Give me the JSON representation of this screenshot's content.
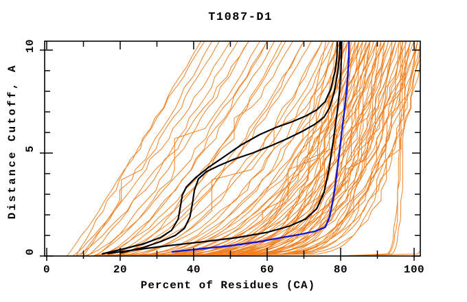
{
  "chart_data": {
    "type": "line",
    "title": "T1087-D1",
    "xlabel": "Percent of Residues (CA)",
    "ylabel": "Distance Cutoff, A",
    "xlim": [
      -0.6,
      101.7
    ],
    "ylim": [
      0,
      10.43
    ],
    "x_ticks": [
      0,
      20,
      40,
      60,
      80,
      100
    ],
    "x_minor_ticks": [
      10,
      30,
      50,
      70,
      90
    ],
    "y_ticks": [
      0,
      5,
      10
    ],
    "y_minor_ticks": [
      1,
      2,
      3,
      4,
      6,
      7,
      8,
      9
    ],
    "grid": false,
    "legend": "none",
    "colors": {
      "ensemble": "#f08020",
      "highlight": "#1515cd",
      "selected": "#000000",
      "frame": "#000000"
    },
    "series": [
      {
        "name": "blue-highlight-model",
        "color": "#1515cd",
        "width": 2.4,
        "points": [
          [
            34,
            0.2
          ],
          [
            42,
            0.35
          ],
          [
            50,
            0.5
          ],
          [
            58,
            0.7
          ],
          [
            64,
            0.9
          ],
          [
            69,
            1.05
          ],
          [
            73,
            1.2
          ],
          [
            75.8,
            1.4
          ],
          [
            77,
            1.9
          ],
          [
            77.8,
            2.6
          ],
          [
            78.6,
            3.5
          ],
          [
            79.5,
            4.8
          ],
          [
            80.3,
            6.0
          ],
          [
            81,
            7.0
          ],
          [
            81.6,
            8.0
          ],
          [
            82,
            8.9
          ],
          [
            82.2,
            9.6
          ],
          [
            82.3,
            10.43
          ]
        ]
      },
      {
        "name": "black-model-1",
        "color": "#000000",
        "width": 2.2,
        "points": [
          [
            20,
            0.15
          ],
          [
            26,
            0.4
          ],
          [
            31,
            0.7
          ],
          [
            35,
            1.0
          ],
          [
            37.5,
            1.35
          ],
          [
            39,
            1.9
          ],
          [
            39.7,
            2.6
          ],
          [
            40.2,
            3.2
          ],
          [
            41.3,
            3.75
          ],
          [
            43.5,
            4.1
          ],
          [
            47,
            4.4
          ],
          [
            51,
            4.7
          ],
          [
            56,
            5.0
          ],
          [
            61,
            5.35
          ],
          [
            65.5,
            5.7
          ],
          [
            69.5,
            6.05
          ],
          [
            73,
            6.4
          ],
          [
            75.5,
            6.75
          ],
          [
            77,
            7.2
          ],
          [
            78.3,
            8.0
          ],
          [
            79.2,
            8.9
          ],
          [
            79.7,
            9.7
          ],
          [
            79.8,
            10.43
          ]
        ]
      },
      {
        "name": "black-model-2",
        "color": "#000000",
        "width": 2.2,
        "points": [
          [
            15,
            0.1
          ],
          [
            21,
            0.35
          ],
          [
            26.5,
            0.6
          ],
          [
            31,
            0.9
          ],
          [
            34,
            1.25
          ],
          [
            35.8,
            1.8
          ],
          [
            36.4,
            2.4
          ],
          [
            36.9,
            2.95
          ],
          [
            38,
            3.35
          ],
          [
            40.5,
            3.8
          ],
          [
            44,
            4.3
          ],
          [
            48.5,
            4.85
          ],
          [
            53,
            5.4
          ],
          [
            58,
            5.9
          ],
          [
            62.5,
            6.25
          ],
          [
            66.5,
            6.5
          ],
          [
            70.5,
            6.8
          ],
          [
            73.5,
            7.1
          ],
          [
            75.8,
            7.5
          ],
          [
            77.3,
            8.1
          ],
          [
            78.5,
            9.0
          ],
          [
            79,
            9.7
          ],
          [
            79.1,
            10.43
          ]
        ]
      },
      {
        "name": "black-model-3",
        "color": "#000000",
        "width": 2.2,
        "points": [
          [
            16.5,
            0.12
          ],
          [
            24,
            0.3
          ],
          [
            33,
            0.5
          ],
          [
            43,
            0.7
          ],
          [
            52,
            0.9
          ],
          [
            60,
            1.15
          ],
          [
            66,
            1.45
          ],
          [
            70.5,
            1.8
          ],
          [
            73.5,
            2.3
          ],
          [
            75.5,
            3.1
          ],
          [
            76.8,
            4.2
          ],
          [
            78,
            5.6
          ],
          [
            79,
            6.9
          ],
          [
            79.7,
            8.0
          ],
          [
            80.1,
            9.0
          ],
          [
            80.3,
            10.43
          ]
        ]
      }
    ],
    "ensemble": {
      "name": "server-model-curves",
      "color": "#f08020",
      "width": 1,
      "sample_y": [
        0,
        0.1,
        0.25,
        0.45,
        0.7,
        1,
        1.35,
        1.75,
        2.2,
        2.7,
        3.2,
        3.7,
        4.2,
        4.7,
        5.2,
        5.7,
        6.2,
        6.7,
        7.2,
        7.7,
        8.2,
        8.7,
        9.2,
        9.7,
        10.1,
        10.43
      ],
      "curves": [
        [
          5.5,
          43,
          0.95,
          1
        ],
        [
          7,
          50,
          0.85,
          2
        ],
        [
          8,
          55,
          0.8,
          3
        ],
        [
          9,
          47,
          0.9,
          4
        ],
        [
          10,
          60,
          0.7,
          5
        ],
        [
          11,
          52,
          0.85,
          6
        ],
        [
          12,
          65,
          0.6,
          7
        ],
        [
          12.5,
          58,
          0.75,
          8
        ],
        [
          13,
          70,
          0.55,
          9
        ],
        [
          14,
          62,
          0.7,
          10
        ],
        [
          15,
          75,
          0.5,
          11
        ],
        [
          15.5,
          67,
          0.65,
          12
        ],
        [
          16,
          80,
          0.45,
          13
        ],
        [
          17,
          72,
          0.6,
          14
        ],
        [
          18,
          85,
          0.4,
          15
        ],
        [
          18.5,
          77,
          0.5,
          16
        ],
        [
          19,
          88,
          0.38,
          17
        ],
        [
          20,
          70,
          0.6,
          18
        ],
        [
          20.5,
          82,
          0.45,
          19
        ],
        [
          21,
          92,
          0.35,
          20
        ],
        [
          22,
          75,
          0.55,
          21
        ],
        [
          22.5,
          86,
          0.42,
          22
        ],
        [
          23,
          95,
          0.32,
          23
        ],
        [
          24,
          78,
          0.5,
          24
        ],
        [
          8,
          42,
          1.0,
          85
        ],
        [
          24.5,
          88,
          0.4,
          25
        ],
        [
          25,
          98,
          0.3,
          26
        ],
        [
          25.5,
          80,
          0.48,
          27
        ],
        [
          26,
          90,
          0.38,
          28
        ],
        [
          26.5,
          100,
          0.28,
          29
        ],
        [
          27,
          82,
          0.45,
          30
        ],
        [
          27.5,
          92,
          0.36,
          31
        ],
        [
          28,
          101,
          0.27,
          32
        ],
        [
          28.5,
          84,
          0.42,
          33
        ],
        [
          29,
          94,
          0.33,
          34
        ],
        [
          29.5,
          86,
          0.4,
          35
        ],
        [
          30,
          96,
          0.3,
          36
        ],
        [
          30.5,
          88,
          0.37,
          37
        ],
        [
          31,
          99,
          0.28,
          38
        ],
        [
          31.5,
          90,
          0.35,
          39
        ],
        [
          32,
          101,
          0.26,
          40
        ],
        [
          32.5,
          85,
          0.4,
          41
        ],
        [
          33,
          93,
          0.32,
          42
        ],
        [
          33.5,
          102,
          0.24,
          43
        ],
        [
          34,
          87,
          0.38,
          44
        ],
        [
          34.5,
          95,
          0.3,
          45
        ],
        [
          35,
          103,
          0.22,
          46
        ],
        [
          35.5,
          89,
          0.35,
          47
        ],
        [
          36,
          97,
          0.28,
          48
        ],
        [
          36.5,
          91,
          0.33,
          49
        ],
        [
          13,
          55,
          0.8,
          81
        ],
        [
          16,
          60,
          0.72,
          82
        ],
        [
          19,
          64,
          0.66,
          83
        ],
        [
          10,
          45,
          0.95,
          84
        ],
        [
          37,
          99,
          0.25,
          50
        ],
        [
          37.5,
          93,
          0.3,
          51
        ],
        [
          38,
          101,
          0.22,
          52
        ],
        [
          38.5,
          95,
          0.27,
          53
        ],
        [
          39,
          103,
          0.2,
          54
        ],
        [
          40,
          97,
          0.24,
          55
        ],
        [
          41,
          99,
          0.2,
          56
        ],
        [
          42,
          101,
          0.18,
          57
        ],
        [
          43,
          95,
          0.25,
          58
        ],
        [
          44,
          99,
          0.2,
          59
        ],
        [
          45,
          102,
          0.17,
          60
        ],
        [
          18,
          78,
          0.18,
          61
        ],
        [
          20,
          80,
          0.16,
          62
        ],
        [
          22,
          82,
          0.15,
          63
        ],
        [
          24,
          84,
          0.14,
          64
        ],
        [
          26,
          79,
          0.17,
          65
        ],
        [
          28,
          86,
          0.13,
          66
        ],
        [
          30,
          81,
          0.16,
          67
        ],
        [
          32,
          88,
          0.12,
          68
        ],
        [
          34,
          83,
          0.15,
          69
        ],
        [
          36,
          90,
          0.12,
          70
        ],
        [
          25,
          76,
          0.2,
          71
        ],
        [
          27,
          85,
          0.14,
          72
        ],
        [
          29,
          92,
          0.11,
          73
        ],
        [
          31,
          87,
          0.13,
          74
        ],
        [
          33,
          94,
          0.11,
          75
        ],
        [
          35,
          80,
          0.18,
          76
        ],
        [
          37,
          96,
          0.1,
          77
        ],
        [
          39,
          91,
          0.12,
          78
        ],
        [
          21,
          88,
          0.13,
          79
        ],
        [
          23,
          90,
          0.12,
          80
        ],
        [
          79,
          96.3,
          0.05,
          86
        ],
        [
          80,
          96.8,
          0.055,
          87
        ],
        [
          80.5,
          97.5,
          0.05,
          88
        ],
        [
          81,
          105,
          0.04,
          89
        ]
      ]
    }
  }
}
